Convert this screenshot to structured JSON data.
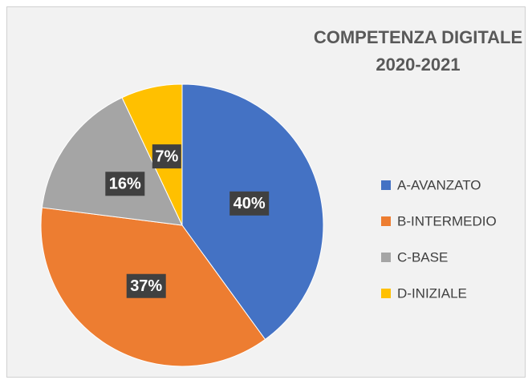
{
  "chart_data": {
    "type": "pie",
    "title": [
      "COMPETENZA DIGITALE",
      "2020-2021"
    ],
    "categories": [
      "A-AVANZATO",
      "B-INTERMEDIO",
      "C-BASE",
      "D-INIZIALE"
    ],
    "values": [
      40,
      37,
      16,
      7
    ],
    "value_labels": [
      "40%",
      "37%",
      "16%",
      "7%"
    ],
    "colors": [
      "#4472c4",
      "#ed7d31",
      "#a5a5a5",
      "#ffc000"
    ],
    "legend": "right"
  }
}
